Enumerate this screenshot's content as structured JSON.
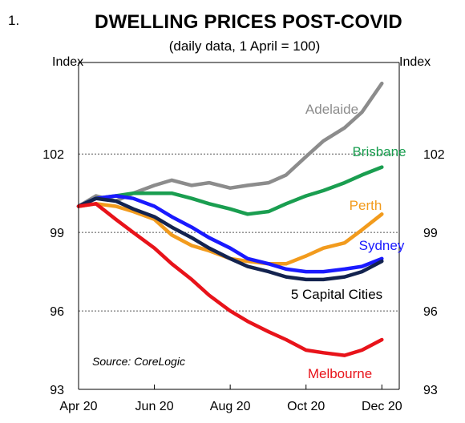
{
  "figure_number": "1.",
  "chart_data": {
    "type": "line",
    "title": "DWELLING PRICES POST-COVID",
    "subtitle": "(daily data, 1 April = 100)",
    "ylabel_left": "Index",
    "ylabel_right": "Index",
    "ylim": [
      93,
      105.5
    ],
    "yticks": [
      93,
      96,
      99,
      102
    ],
    "xlim": [
      "2020-04-01",
      "2020-12-15"
    ],
    "xticks": [
      {
        "date": "2020-04-01",
        "label": "Apr 20"
      },
      {
        "date": "2020-06-01",
        "label": "Jun 20"
      },
      {
        "date": "2020-08-01",
        "label": "Aug 20"
      },
      {
        "date": "2020-10-01",
        "label": "Oct 20"
      },
      {
        "date": "2020-12-01",
        "label": "Dec 20"
      }
    ],
    "grid": "horizontal dotted",
    "source": "Source: CoreLogic",
    "series": [
      {
        "name": "Adelaide",
        "color": "#8c8c8c",
        "x": [
          "2020-04-01",
          "2020-04-15",
          "2020-05-01",
          "2020-05-15",
          "2020-06-01",
          "2020-06-15",
          "2020-07-01",
          "2020-07-15",
          "2020-08-01",
          "2020-08-15",
          "2020-09-01",
          "2020-09-15",
          "2020-10-01",
          "2020-10-15",
          "2020-11-01",
          "2020-11-15",
          "2020-12-01"
        ],
        "y": [
          100,
          100.4,
          100.2,
          100.5,
          100.8,
          101.0,
          100.8,
          100.9,
          100.7,
          100.8,
          100.9,
          101.2,
          101.9,
          102.5,
          103.0,
          103.6,
          104.7
        ]
      },
      {
        "name": "Brisbane",
        "color": "#1a9e50",
        "x": [
          "2020-04-01",
          "2020-04-15",
          "2020-05-01",
          "2020-05-15",
          "2020-06-01",
          "2020-06-15",
          "2020-07-01",
          "2020-07-15",
          "2020-08-01",
          "2020-08-15",
          "2020-09-01",
          "2020-09-15",
          "2020-10-01",
          "2020-10-15",
          "2020-11-01",
          "2020-11-15",
          "2020-12-01"
        ],
        "y": [
          100,
          100.3,
          100.4,
          100.5,
          100.5,
          100.5,
          100.3,
          100.1,
          99.9,
          99.7,
          99.8,
          100.1,
          100.4,
          100.6,
          100.9,
          101.2,
          101.5
        ]
      },
      {
        "name": "Perth",
        "color": "#f29b1d",
        "x": [
          "2020-04-01",
          "2020-04-15",
          "2020-05-01",
          "2020-05-15",
          "2020-06-01",
          "2020-06-15",
          "2020-07-01",
          "2020-07-15",
          "2020-08-01",
          "2020-08-15",
          "2020-09-01",
          "2020-09-15",
          "2020-10-01",
          "2020-10-15",
          "2020-11-01",
          "2020-11-15",
          "2020-12-01"
        ],
        "y": [
          100,
          100.1,
          100.0,
          99.8,
          99.5,
          98.9,
          98.5,
          98.3,
          98.0,
          97.9,
          97.8,
          97.8,
          98.1,
          98.4,
          98.6,
          99.1,
          99.7
        ]
      },
      {
        "name": "Sydney",
        "color": "#1a1aff",
        "x": [
          "2020-04-01",
          "2020-04-15",
          "2020-05-01",
          "2020-05-15",
          "2020-06-01",
          "2020-06-15",
          "2020-07-01",
          "2020-07-15",
          "2020-08-01",
          "2020-08-15",
          "2020-09-01",
          "2020-09-15",
          "2020-10-01",
          "2020-10-15",
          "2020-11-01",
          "2020-11-15",
          "2020-12-01"
        ],
        "y": [
          100,
          100.3,
          100.4,
          100.3,
          100.0,
          99.6,
          99.2,
          98.8,
          98.4,
          98.0,
          97.8,
          97.6,
          97.5,
          97.5,
          97.6,
          97.7,
          98.0
        ]
      },
      {
        "name": "5 Capital Cities",
        "color": "#13234f",
        "x": [
          "2020-04-01",
          "2020-04-15",
          "2020-05-01",
          "2020-05-15",
          "2020-06-01",
          "2020-06-15",
          "2020-07-01",
          "2020-07-15",
          "2020-08-01",
          "2020-08-15",
          "2020-09-01",
          "2020-09-15",
          "2020-10-01",
          "2020-10-15",
          "2020-11-01",
          "2020-11-15",
          "2020-12-01"
        ],
        "y": [
          100,
          100.3,
          100.2,
          99.9,
          99.6,
          99.2,
          98.8,
          98.4,
          98.0,
          97.7,
          97.5,
          97.3,
          97.2,
          97.2,
          97.3,
          97.5,
          97.9
        ]
      },
      {
        "name": "Melbourne",
        "color": "#e8131a",
        "x": [
          "2020-04-01",
          "2020-04-15",
          "2020-05-01",
          "2020-05-15",
          "2020-06-01",
          "2020-06-15",
          "2020-07-01",
          "2020-07-15",
          "2020-08-01",
          "2020-08-15",
          "2020-09-01",
          "2020-09-15",
          "2020-10-01",
          "2020-10-15",
          "2020-11-01",
          "2020-11-15",
          "2020-12-01"
        ],
        "y": [
          100,
          100.1,
          99.5,
          99.0,
          98.4,
          97.8,
          97.2,
          96.6,
          96.0,
          95.6,
          95.2,
          94.9,
          94.5,
          94.4,
          94.3,
          94.5,
          94.9
        ]
      }
    ]
  }
}
